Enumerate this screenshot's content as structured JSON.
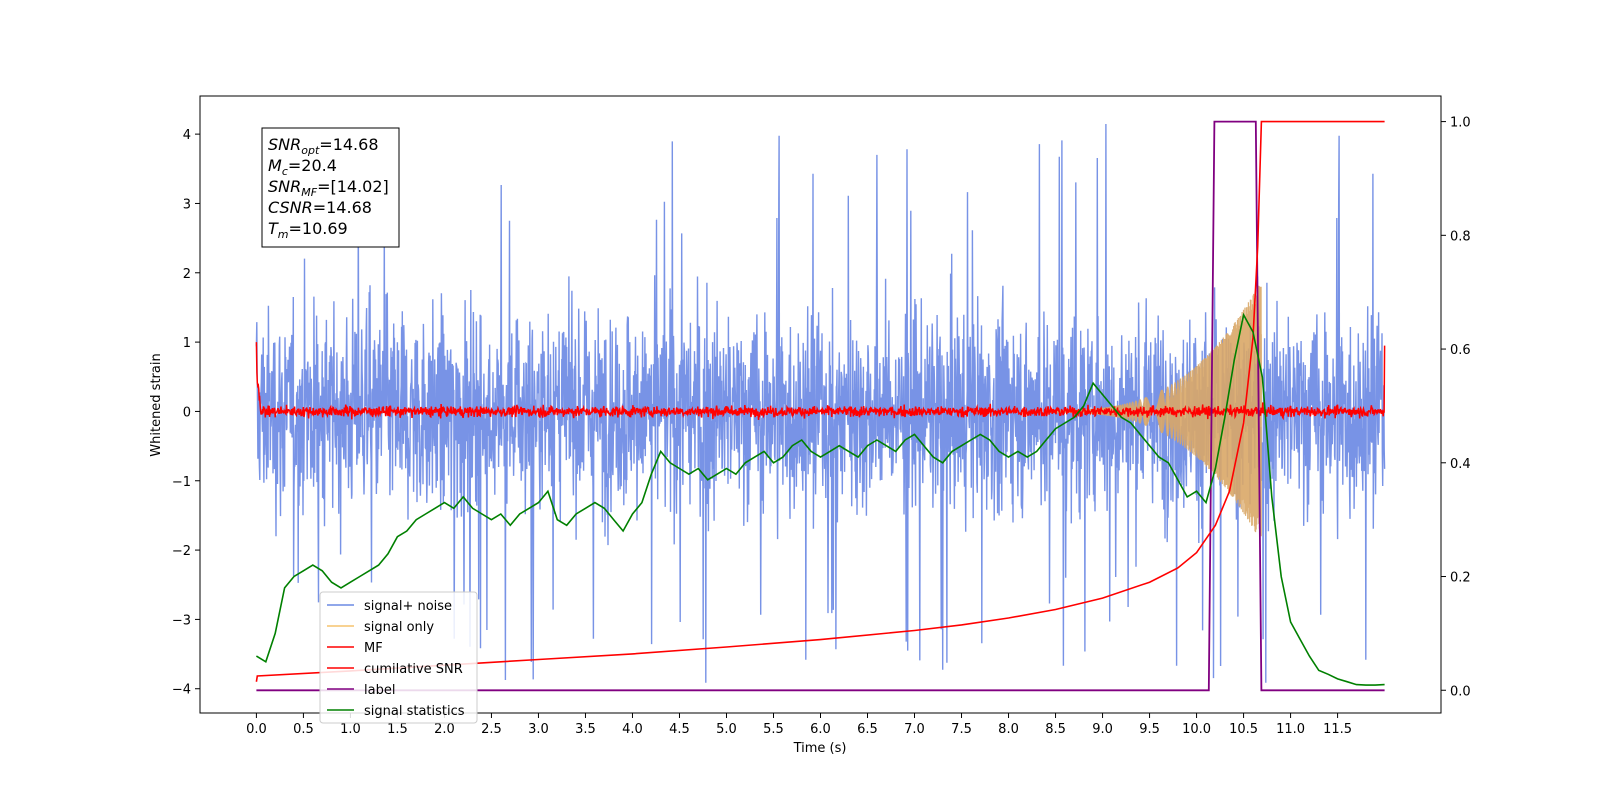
{
  "chart_data": {
    "type": "line",
    "title": "",
    "xlabel": "Time (s)",
    "ylabel": "Whitened strain",
    "xlim": [
      -0.6,
      12.6
    ],
    "ylim_left": [
      -4.35,
      4.55
    ],
    "ylim_right": [
      -0.04,
      1.045
    ],
    "x_ticks": [
      0.0,
      0.5,
      1.0,
      1.5,
      2.0,
      2.5,
      3.0,
      3.5,
      4.0,
      4.5,
      5.0,
      5.5,
      6.0,
      6.5,
      7.0,
      7.5,
      8.0,
      8.5,
      9.0,
      9.5,
      10.0,
      10.5,
      11.0,
      11.5
    ],
    "x_tick_labels": [
      "0.0",
      "0.5",
      "1.0",
      "1.5",
      "2.0",
      "2.5",
      "3.0",
      "3.5",
      "4.0",
      "4.5",
      "5.0",
      "5.5",
      "6.0",
      "6.5",
      "7.0",
      "7.5",
      "8.0",
      "8.5",
      "9.0",
      "9.5",
      "10.0",
      "10.5",
      "11.0",
      "11.5"
    ],
    "y_left_ticks": [
      -4,
      -3,
      -2,
      -1,
      0,
      1,
      2,
      3,
      4
    ],
    "y_left_tick_labels": [
      "−4",
      "−3",
      "−2",
      "−1",
      "0",
      "1",
      "2",
      "3",
      "4"
    ],
    "y_right_ticks": [
      0.0,
      0.2,
      0.4,
      0.6,
      0.8,
      1.0
    ],
    "y_right_tick_labels": [
      "0.0",
      "0.2",
      "0.4",
      "0.6",
      "0.8",
      "1.0"
    ],
    "grid": false,
    "legend_placement": "lower-left",
    "legend": [
      {
        "label": "signal+ noise",
        "color": "#6c8ae4"
      },
      {
        "label": "signal only",
        "color": "#f5c46e"
      },
      {
        "label": "MF",
        "color": "#ff0000"
      },
      {
        "label": "cumilative SNR",
        "color": "#ff0000"
      },
      {
        "label": "label",
        "color": "#800080"
      },
      {
        "label": "signal statistics",
        "color": "#008000"
      }
    ],
    "annotation": [
      {
        "main": "SNR",
        "sub": "opt",
        "rest": "=14.68"
      },
      {
        "main": "M",
        "sub": "c",
        "rest": "=20.4"
      },
      {
        "main": "SNR",
        "sub": "MF",
        "rest": "=[14.02]"
      },
      {
        "main": "CSNR",
        "sub": "",
        "rest": "=14.68"
      },
      {
        "main": "T",
        "sub": "m",
        "rest": "=10.69"
      }
    ],
    "series": [
      {
        "name": "signal+ noise",
        "axis": "left",
        "color": "#6c8ae4",
        "x_range": [
          0.0,
          12.0
        ],
        "envelope_lower": -2.4,
        "envelope_upper": 2.4,
        "peak_max": 4.2,
        "peak_min": -3.95
      },
      {
        "name": "signal only",
        "axis": "left",
        "color": "#d9a767",
        "x_range": [
          8.4,
          10.69
        ],
        "amplitude_start": 0.02,
        "amplitude_end": 1.9
      },
      {
        "name": "MF",
        "axis": "left",
        "color": "#ff0000",
        "x_range": [
          0.0,
          12.0
        ],
        "start_value": 1.0,
        "end_value": 0.95,
        "noise_band": 0.12
      },
      {
        "name": "cumilative SNR",
        "axis": "right",
        "color": "#ff0000",
        "x": [
          0.0,
          0.01,
          1.0,
          2.0,
          3.0,
          4.0,
          5.0,
          6.0,
          7.0,
          7.5,
          8.0,
          8.5,
          9.0,
          9.5,
          9.8,
          10.0,
          10.2,
          10.35,
          10.5,
          10.6,
          10.65,
          10.69,
          12.0
        ],
        "y": [
          0.015,
          0.025,
          0.034,
          0.044,
          0.054,
          0.064,
          0.076,
          0.089,
          0.105,
          0.115,
          0.127,
          0.142,
          0.162,
          0.19,
          0.215,
          0.242,
          0.29,
          0.35,
          0.47,
          0.62,
          0.78,
          1.0,
          1.0
        ]
      },
      {
        "name": "label",
        "axis": "right",
        "color": "#800080",
        "x": [
          0.0,
          10.13,
          10.19,
          10.63,
          10.69,
          11.0,
          12.0
        ],
        "y": [
          0.0,
          0.0,
          1.0,
          1.0,
          0.0,
          0.0,
          0.0
        ]
      },
      {
        "name": "signal statistics",
        "axis": "right",
        "color": "#008000",
        "x": [
          0.0,
          0.1,
          0.2,
          0.3,
          0.4,
          0.5,
          0.6,
          0.7,
          0.8,
          0.9,
          1.0,
          1.1,
          1.2,
          1.3,
          1.4,
          1.5,
          1.6,
          1.7,
          1.8,
          1.9,
          2.0,
          2.1,
          2.2,
          2.3,
          2.4,
          2.5,
          2.6,
          2.7,
          2.8,
          2.9,
          3.0,
          3.1,
          3.2,
          3.3,
          3.4,
          3.5,
          3.6,
          3.7,
          3.8,
          3.9,
          4.0,
          4.1,
          4.2,
          4.3,
          4.4,
          4.5,
          4.6,
          4.7,
          4.8,
          4.9,
          5.0,
          5.1,
          5.2,
          5.3,
          5.4,
          5.5,
          5.6,
          5.7,
          5.8,
          5.9,
          6.0,
          6.1,
          6.2,
          6.3,
          6.4,
          6.5,
          6.6,
          6.7,
          6.8,
          6.9,
          7.0,
          7.1,
          7.2,
          7.3,
          7.4,
          7.5,
          7.6,
          7.7,
          7.8,
          7.9,
          8.0,
          8.1,
          8.2,
          8.3,
          8.4,
          8.5,
          8.6,
          8.7,
          8.8,
          8.9,
          9.0,
          9.1,
          9.2,
          9.3,
          9.4,
          9.5,
          9.6,
          9.7,
          9.8,
          9.9,
          10.0,
          10.1,
          10.2,
          10.3,
          10.4,
          10.5,
          10.6,
          10.7,
          10.8,
          10.9,
          11.0,
          11.1,
          11.2,
          11.3,
          11.4,
          11.5,
          11.6,
          11.7,
          11.8,
          11.9,
          12.0
        ],
        "y": [
          0.06,
          0.05,
          0.1,
          0.18,
          0.2,
          0.21,
          0.22,
          0.21,
          0.19,
          0.18,
          0.19,
          0.2,
          0.21,
          0.22,
          0.24,
          0.27,
          0.28,
          0.3,
          0.31,
          0.32,
          0.33,
          0.32,
          0.34,
          0.32,
          0.31,
          0.3,
          0.31,
          0.29,
          0.31,
          0.32,
          0.33,
          0.35,
          0.3,
          0.29,
          0.31,
          0.32,
          0.33,
          0.32,
          0.3,
          0.28,
          0.31,
          0.33,
          0.38,
          0.42,
          0.4,
          0.39,
          0.38,
          0.39,
          0.37,
          0.38,
          0.39,
          0.38,
          0.4,
          0.41,
          0.42,
          0.4,
          0.41,
          0.43,
          0.44,
          0.42,
          0.41,
          0.42,
          0.43,
          0.42,
          0.41,
          0.43,
          0.44,
          0.43,
          0.42,
          0.44,
          0.45,
          0.43,
          0.41,
          0.4,
          0.42,
          0.43,
          0.44,
          0.45,
          0.44,
          0.42,
          0.41,
          0.42,
          0.41,
          0.42,
          0.44,
          0.46,
          0.47,
          0.48,
          0.5,
          0.54,
          0.52,
          0.5,
          0.48,
          0.47,
          0.45,
          0.43,
          0.41,
          0.4,
          0.37,
          0.34,
          0.35,
          0.33,
          0.39,
          0.48,
          0.58,
          0.66,
          0.63,
          0.55,
          0.34,
          0.2,
          0.12,
          0.09,
          0.06,
          0.035,
          0.028,
          0.02,
          0.015,
          0.01,
          0.009,
          0.009,
          0.01
        ]
      }
    ]
  }
}
